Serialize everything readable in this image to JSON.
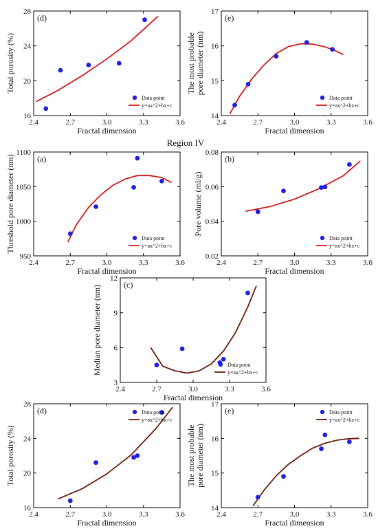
{
  "region_heading": "Region IV",
  "colors": {
    "point": "#1f20e0",
    "fit_red": "#d01818",
    "fit_brown": "#6b1a0a",
    "axis": "#000000"
  },
  "legend": {
    "point_label": "Data point",
    "fit_label": "y=ax^2+bx+c"
  },
  "chart_data": [
    {
      "id": "top-d",
      "panel_label": "(d)",
      "type": "scatter",
      "xlabel": "Fractal dimension",
      "ylabel": [
        "Total porosity (%)"
      ],
      "xlim": [
        2.4,
        3.6
      ],
      "ylim": [
        16,
        28
      ],
      "xticks": [
        2.4,
        2.7,
        3.0,
        3.3,
        3.6
      ],
      "xtick_labels": [
        "2.4",
        "2.7",
        "3.0",
        "3.3",
        "3.6"
      ],
      "yticks": [
        16,
        20,
        24,
        28
      ],
      "ytick_labels": [
        "16",
        "20",
        "24",
        "28"
      ],
      "points": {
        "x": [
          2.5,
          2.62,
          2.85,
          3.1,
          3.31
        ],
        "y": [
          16.8,
          21.2,
          21.8,
          22.0,
          27.0
        ]
      },
      "fit": {
        "color": "red",
        "x": [
          2.42,
          2.6,
          2.8,
          3.0,
          3.2,
          3.42
        ],
        "y": [
          17.6,
          18.9,
          20.6,
          22.5,
          24.6,
          27.4
        ]
      },
      "legend_position": "bottom-right"
    },
    {
      "id": "top-e",
      "panel_label": "(e)",
      "type": "scatter",
      "xlabel": "Fractal dimension",
      "ylabel": [
        "The most probable",
        "pore diameter (nm)"
      ],
      "xlim": [
        2.4,
        3.6
      ],
      "ylim": [
        14,
        17
      ],
      "xticks": [
        2.4,
        2.7,
        3.0,
        3.3,
        3.6
      ],
      "xtick_labels": [
        "2.4",
        "2.7",
        "3.0",
        "3.3",
        "3.6"
      ],
      "yticks": [
        14,
        15,
        16,
        17
      ],
      "ytick_labels": [
        "14",
        "15",
        "16",
        "17"
      ],
      "points": {
        "x": [
          2.51,
          2.62,
          2.85,
          3.1,
          3.31
        ],
        "y": [
          14.3,
          14.9,
          15.7,
          16.1,
          15.9
        ]
      },
      "fit": {
        "color": "red",
        "x": [
          2.47,
          2.55,
          2.65,
          2.75,
          2.85,
          2.95,
          3.05,
          3.15,
          3.25,
          3.33,
          3.4
        ],
        "y": [
          14.05,
          14.55,
          15.05,
          15.45,
          15.78,
          15.98,
          16.06,
          16.05,
          15.97,
          15.87,
          15.75
        ]
      },
      "legend_position": "bottom-right"
    },
    {
      "id": "iv-a",
      "panel_label": "(a)",
      "type": "scatter",
      "xlabel": "Fractal dimension",
      "ylabel": [
        "Threshold pore diameter (nm)"
      ],
      "xlim": [
        2.4,
        3.6
      ],
      "ylim": [
        950,
        1100
      ],
      "xticks": [
        2.4,
        2.7,
        3.0,
        3.3,
        3.6
      ],
      "xtick_labels": [
        "2.4",
        "2.7",
        "3.0",
        "3.3",
        "3.6"
      ],
      "yticks": [
        950,
        1000,
        1050,
        1100
      ],
      "ytick_labels": [
        "950",
        "1000",
        "1050",
        "1100"
      ],
      "points": {
        "x": [
          2.7,
          2.91,
          3.22,
          3.25,
          3.45
        ],
        "y": [
          982,
          1021,
          1049,
          1091,
          1058
        ]
      },
      "fit": {
        "color": "red",
        "x": [
          2.68,
          2.75,
          2.85,
          2.95,
          3.05,
          3.15,
          3.25,
          3.35,
          3.45,
          3.53
        ],
        "y": [
          970,
          995,
          1020,
          1038,
          1052,
          1061,
          1066,
          1066,
          1063,
          1056
        ]
      },
      "legend_position": "bottom-right"
    },
    {
      "id": "iv-b",
      "panel_label": "(b)",
      "type": "scatter",
      "xlabel": "Fractal dimension",
      "ylabel": [
        "Pore volume (ml/g)"
      ],
      "xlim": [
        2.4,
        3.6
      ],
      "ylim": [
        0.02,
        0.08
      ],
      "xticks": [
        2.4,
        2.7,
        3.0,
        3.3,
        3.6
      ],
      "xtick_labels": [
        "2.4",
        "2.7",
        "3.0",
        "3.3",
        "3.6"
      ],
      "yticks": [
        0.02,
        0.04,
        0.06,
        0.08
      ],
      "ytick_labels": [
        "0.02",
        "0.04",
        "0.06",
        "0.08"
      ],
      "points": {
        "x": [
          2.7,
          2.91,
          3.22,
          3.25,
          3.45
        ],
        "y": [
          0.0455,
          0.0575,
          0.0595,
          0.0598,
          0.0728
        ]
      },
      "fit": {
        "color": "red",
        "x": [
          2.6,
          2.8,
          3.0,
          3.2,
          3.4,
          3.54
        ],
        "y": [
          0.0458,
          0.0485,
          0.0528,
          0.0588,
          0.0663,
          0.0748
        ]
      },
      "legend_position": "bottom-right"
    },
    {
      "id": "iv-c",
      "panel_label": "(c)",
      "type": "scatter",
      "xlabel": "Fractal dimension",
      "ylabel": [
        "Median pore diameter (nm)"
      ],
      "xlim": [
        2.4,
        3.6
      ],
      "ylim": [
        3,
        12
      ],
      "xticks": [
        2.4,
        2.7,
        3.0,
        3.3,
        3.6
      ],
      "xtick_labels": [
        "2.4",
        "2.7",
        "3.0",
        "3.3",
        "3.6"
      ],
      "yticks": [
        3,
        6,
        9,
        12
      ],
      "ytick_labels": [
        "3",
        "6",
        "9",
        "12"
      ],
      "points": {
        "x": [
          2.7,
          2.91,
          3.22,
          3.25,
          3.45
        ],
        "y": [
          4.5,
          5.9,
          4.7,
          5.0,
          10.7
        ]
      },
      "fit": {
        "color": "brown",
        "x": [
          2.65,
          2.75,
          2.85,
          2.95,
          3.05,
          3.15,
          3.25,
          3.35,
          3.45,
          3.52
        ],
        "y": [
          6.0,
          4.4,
          4.0,
          3.8,
          4.0,
          4.6,
          5.7,
          7.3,
          9.5,
          11.3
        ]
      },
      "legend_position": "bottom-right"
    },
    {
      "id": "iv-d",
      "panel_label": "(d)",
      "type": "scatter",
      "xlabel": "Fractal dimension",
      "ylabel": [
        "Total porosity (%)"
      ],
      "xlim": [
        2.4,
        3.6
      ],
      "ylim": [
        16,
        28
      ],
      "xticks": [
        2.4,
        2.7,
        3.0,
        3.3,
        3.6
      ],
      "xtick_labels": [
        "2.4",
        "2.7",
        "3.0",
        "3.3",
        "3.6"
      ],
      "yticks": [
        16,
        20,
        24,
        28
      ],
      "ytick_labels": [
        "16",
        "20",
        "24",
        "28"
      ],
      "points": {
        "x": [
          2.7,
          2.91,
          3.22,
          3.25,
          3.45
        ],
        "y": [
          16.8,
          21.2,
          21.8,
          22.0,
          27.0
        ]
      },
      "fit": {
        "color": "brown",
        "x": [
          2.6,
          2.8,
          3.0,
          3.2,
          3.4,
          3.54
        ],
        "y": [
          17.0,
          18.2,
          19.9,
          22.1,
          25.1,
          27.6
        ]
      },
      "legend_position": "top-right"
    },
    {
      "id": "iv-e",
      "panel_label": "(e)",
      "type": "scatter",
      "xlabel": "Fractal dimension",
      "ylabel": [
        "The most probable",
        "pore diameter (nm)"
      ],
      "xlim": [
        2.4,
        3.6
      ],
      "ylim": [
        14,
        17
      ],
      "xticks": [
        2.4,
        2.7,
        3.0,
        3.3,
        3.6
      ],
      "xtick_labels": [
        "2.4",
        "2.7",
        "3.0",
        "3.3",
        "3.6"
      ],
      "yticks": [
        14,
        15,
        16,
        17
      ],
      "ytick_labels": [
        "14",
        "15",
        "16",
        "17"
      ],
      "points": {
        "x": [
          2.7,
          2.91,
          3.22,
          3.25,
          3.45
        ],
        "y": [
          14.3,
          14.9,
          15.7,
          16.1,
          15.9
        ]
      },
      "fit": {
        "color": "brown",
        "x": [
          2.66,
          2.75,
          2.85,
          2.95,
          3.05,
          3.15,
          3.25,
          3.35,
          3.45,
          3.53
        ],
        "y": [
          14.05,
          14.5,
          14.92,
          15.25,
          15.5,
          15.72,
          15.86,
          15.95,
          15.99,
          16.0
        ]
      },
      "legend_position": "top-right"
    }
  ]
}
